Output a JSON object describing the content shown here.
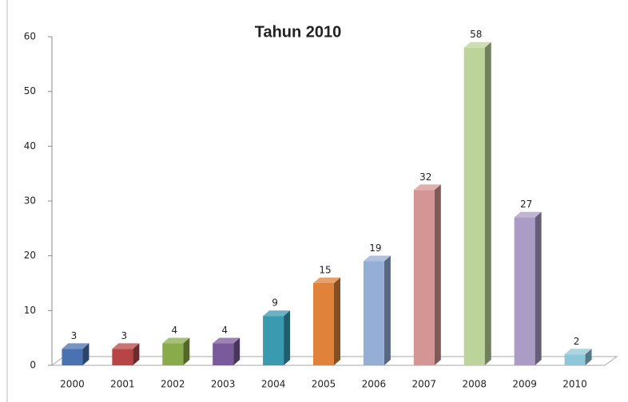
{
  "chart_data": {
    "type": "bar3d",
    "title": "Tahun 2010",
    "categories": [
      "2000",
      "2001",
      "2002",
      "2003",
      "2004",
      "2005",
      "2006",
      "2007",
      "2008",
      "2009",
      "2010"
    ],
    "values": [
      3,
      3,
      4,
      4,
      9,
      15,
      19,
      32,
      58,
      27,
      2
    ],
    "colors": [
      "#4a72b0",
      "#b84545",
      "#8aab4b",
      "#7a5a9a",
      "#3a9ab0",
      "#e0823a",
      "#95aed5",
      "#d59595",
      "#bcd39a",
      "#aa9cc4",
      "#8ec8d8"
    ],
    "ylim": [
      0,
      60
    ],
    "yticks": [
      0,
      10,
      20,
      30,
      40,
      50,
      60
    ]
  }
}
